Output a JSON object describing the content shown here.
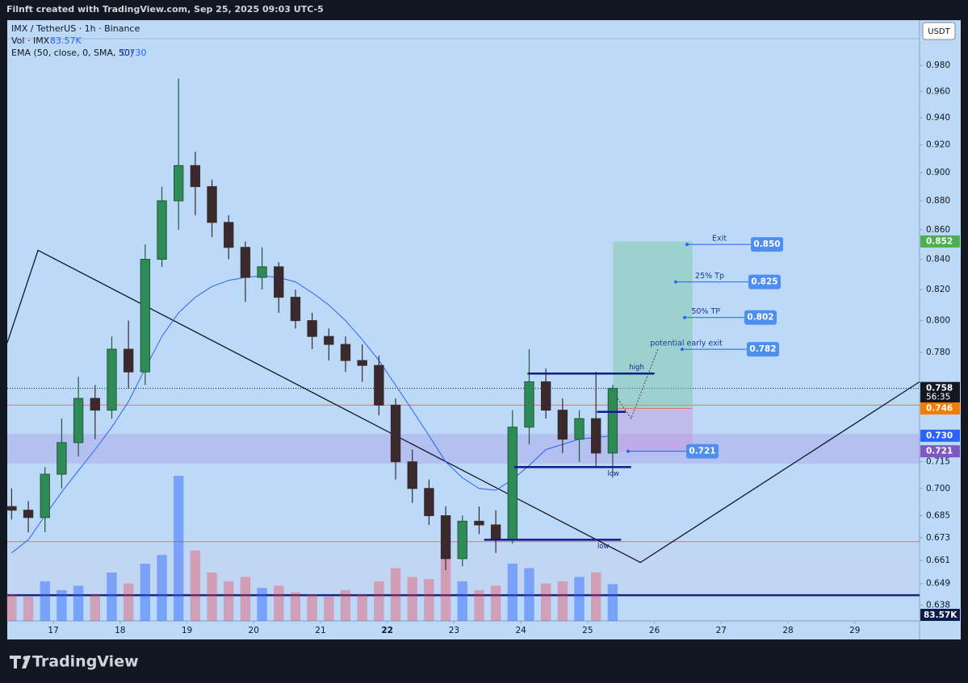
{
  "chart_data": {
    "type": "candlestick",
    "credit": "Filnft created with TradingView.com, Sep 25, 2025 09:03 UTC-5",
    "title": "IMX / TetherUS · 1h · Binance",
    "currency": "USDT",
    "brand": "TradingView",
    "log_scale": true,
    "xlim": [
      16.31,
      29.97
    ],
    "ylim": [
      0.63,
      1.016
    ],
    "xticks": [
      17,
      18,
      19,
      20,
      21,
      22,
      23,
      24,
      25,
      26,
      27,
      28,
      29
    ],
    "yticks": [
      0.638,
      0.649,
      0.661,
      0.673,
      0.685,
      {
        "value": 0.7,
        "label": "0.700"
      },
      0.715,
      {
        "value": 0.78,
        "label": "0.780"
      },
      {
        "value": 0.8,
        "label": "0.800"
      },
      {
        "value": 0.82,
        "label": "0.820"
      },
      {
        "value": 0.84,
        "label": "0.840"
      },
      {
        "value": 0.86,
        "label": "0.860"
      },
      {
        "value": 0.88,
        "label": "0.880"
      },
      {
        "value": 0.9,
        "label": "0.900"
      },
      {
        "value": 0.92,
        "label": "0.920"
      },
      {
        "value": 0.94,
        "label": "0.940"
      },
      {
        "value": 0.96,
        "label": "0.960"
      },
      {
        "value": 0.98,
        "label": "0.980"
      }
    ],
    "up_color": "#1f5a3a",
    "down_color": "#3a2a2e",
    "x": [
      16.375,
      16.625,
      16.875,
      17.125,
      17.375,
      17.625,
      17.875,
      18.125,
      18.375,
      18.625,
      18.875,
      19.125,
      19.375,
      19.625,
      19.875,
      20.125,
      20.375,
      20.625,
      20.875,
      21.125,
      21.375,
      21.625,
      21.875,
      22.125,
      22.375,
      22.625,
      22.875,
      23.125,
      23.375,
      23.625,
      23.875,
      24.125,
      24.375,
      24.625,
      24.875,
      25.125,
      25.375
    ],
    "open": [
      0.69,
      0.688,
      0.684,
      0.708,
      0.726,
      0.752,
      0.745,
      0.782,
      0.768,
      0.84,
      0.88,
      0.905,
      0.89,
      0.865,
      0.848,
      0.828,
      0.835,
      0.815,
      0.8,
      0.79,
      0.785,
      0.775,
      0.772,
      0.748,
      0.715,
      0.7,
      0.685,
      0.662,
      0.682,
      0.68,
      0.672,
      0.735,
      0.762,
      0.745,
      0.728,
      0.74,
      0.72
    ],
    "high": [
      0.7,
      0.693,
      0.712,
      0.74,
      0.765,
      0.76,
      0.79,
      0.8,
      0.85,
      0.89,
      0.97,
      0.915,
      0.895,
      0.87,
      0.852,
      0.848,
      0.838,
      0.82,
      0.805,
      0.795,
      0.79,
      0.785,
      0.778,
      0.752,
      0.722,
      0.705,
      0.69,
      0.685,
      0.69,
      0.688,
      0.745,
      0.782,
      0.77,
      0.752,
      0.745,
      0.768,
      0.76
    ],
    "low": [
      0.683,
      0.676,
      0.676,
      0.7,
      0.718,
      0.728,
      0.74,
      0.758,
      0.76,
      0.835,
      0.86,
      0.87,
      0.855,
      0.84,
      0.812,
      0.82,
      0.805,
      0.795,
      0.782,
      0.775,
      0.768,
      0.762,
      0.742,
      0.705,
      0.692,
      0.68,
      0.656,
      0.658,
      0.675,
      0.665,
      0.67,
      0.725,
      0.74,
      0.72,
      0.715,
      0.712,
      0.706
    ],
    "close": [
      0.688,
      0.684,
      0.708,
      0.726,
      0.752,
      0.745,
      0.782,
      0.768,
      0.84,
      0.88,
      0.905,
      0.89,
      0.865,
      0.848,
      0.828,
      0.835,
      0.815,
      0.8,
      0.79,
      0.785,
      0.775,
      0.772,
      0.748,
      0.715,
      0.7,
      0.685,
      0.662,
      0.682,
      0.68,
      0.672,
      0.735,
      0.762,
      0.745,
      0.728,
      0.74,
      0.72,
      0.758
    ],
    "volume": {
      "name": "Vol · IMX",
      "up_color": "rgba(41,98,255,0.45)",
      "down_color": "rgba(242,54,69,0.35)",
      "values": [
        60,
        55,
        90,
        70,
        80,
        60,
        110,
        85,
        130,
        150,
        330,
        160,
        110,
        90,
        100,
        75,
        80,
        65,
        60,
        55,
        70,
        60,
        90,
        120,
        100,
        95,
        150,
        90,
        70,
        80,
        130,
        120,
        85,
        90,
        100,
        110,
        83.57
      ],
      "last": {
        "value": 83.57,
        "label": "83.57K"
      }
    },
    "ema": {
      "name": "EMA (50, close, 0, SMA, 50)",
      "color": "#2962ff",
      "values": [
        0.665,
        0.672,
        0.685,
        0.698,
        0.71,
        0.722,
        0.735,
        0.75,
        0.77,
        0.79,
        0.805,
        0.815,
        0.822,
        0.826,
        0.828,
        0.829,
        0.828,
        0.825,
        0.818,
        0.81,
        0.8,
        0.788,
        0.775,
        0.76,
        0.745,
        0.73,
        0.715,
        0.706,
        0.7,
        0.699,
        0.705,
        0.713,
        0.722,
        0.725,
        0.728,
        0.729,
        0.73
      ],
      "last": {
        "value": 0.73,
        "label": "0.730"
      }
    },
    "price_tags": [
      {
        "price": 0.852,
        "color": "#4caf50"
      },
      {
        "price": 0.758,
        "color": "#131722",
        "countdown": "56:35"
      },
      {
        "price": 0.746,
        "color": "#f57c00"
      },
      {
        "price": {
          "value": 0.73,
          "label": "0.730"
        },
        "color": "#2962ff"
      },
      {
        "price": 0.721,
        "color": "#7e57c2"
      }
    ],
    "annotations": [
      {
        "text": "Exit",
        "price": {
          "value": 0.85,
          "label": "0.850"
        }
      },
      {
        "text": "25% Tp",
        "price": 0.825
      },
      {
        "text": "50% TP",
        "price": 0.802
      },
      {
        "text": "potential early exit",
        "price": 0.782
      },
      {
        "text": "",
        "price": 0.721
      }
    ],
    "levels": [
      {
        "text": "high",
        "price": 0.767,
        "from": 24.1,
        "to": 26.0
      },
      {
        "text": "low",
        "price": 0.712,
        "from": 23.9,
        "to": 25.65
      },
      {
        "text": "low",
        "price": 0.672,
        "from": 23.45,
        "to": 25.5
      },
      {
        "text": "",
        "price": 0.744,
        "from": 25.14,
        "to": 25.57
      }
    ],
    "zigzag": {
      "x": [
        16.31,
        16.77,
        25.79,
        29.97
      ],
      "y": [
        0.786,
        0.846,
        0.66,
        0.762
      ]
    },
    "projection": {
      "x": [
        25.45,
        25.65,
        26.05
      ],
      "y": [
        0.752,
        0.74,
        0.782
      ]
    },
    "zones": [
      [
        0.714,
        0.731
      ],
      [
        0.643,
        0.671
      ]
    ],
    "support": 0.643,
    "red_lines": [
      0.748,
      0.671
    ]
  }
}
